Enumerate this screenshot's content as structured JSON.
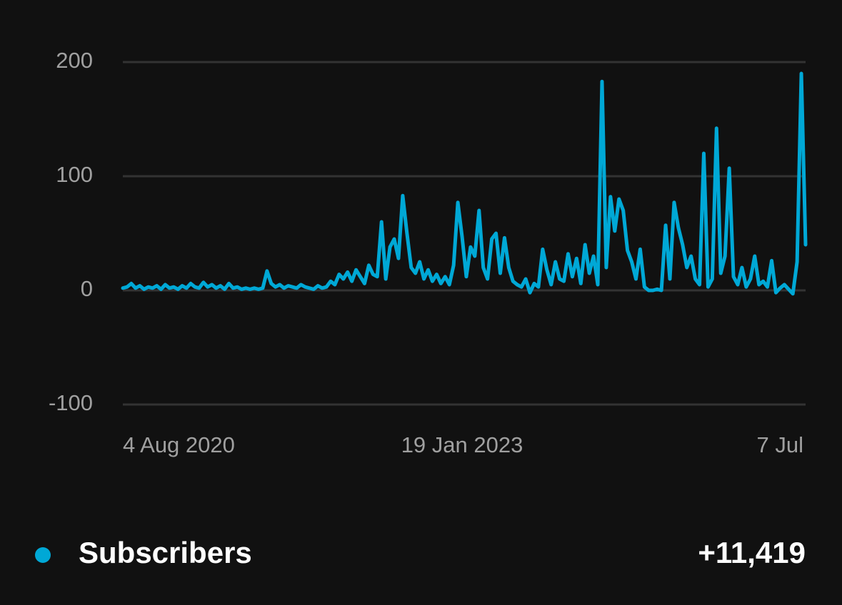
{
  "chart_data": {
    "type": "line",
    "categories": [
      "4 Aug 2020",
      null,
      null,
      null,
      null,
      null,
      null,
      null,
      null,
      null,
      null,
      null,
      null,
      null,
      null,
      null,
      null,
      null,
      null,
      null,
      null,
      null,
      null,
      null,
      null,
      null,
      null,
      null,
      null,
      null,
      null,
      null,
      null,
      null,
      null,
      null,
      null,
      null,
      null,
      null,
      null,
      null,
      null,
      null,
      null,
      null,
      null,
      null,
      null,
      null,
      null,
      null,
      null,
      null,
      null,
      null,
      null,
      null,
      null,
      null,
      null,
      null,
      null,
      null,
      null,
      null,
      null,
      null,
      null,
      null,
      null,
      null,
      null,
      null,
      null,
      null,
      null,
      null,
      null,
      null,
      "19 Jan 2023",
      null,
      null,
      null,
      null,
      null,
      null,
      null,
      null,
      null,
      null,
      null,
      null,
      null,
      null,
      null,
      null,
      null,
      null,
      null,
      null,
      null,
      null,
      null,
      null,
      null,
      null,
      null,
      null,
      null,
      null,
      null,
      null,
      null,
      null,
      null,
      null,
      null,
      null,
      null,
      null,
      null,
      null,
      null,
      null,
      null,
      null,
      null,
      null,
      null,
      null,
      null,
      null,
      null,
      null,
      null,
      null,
      null,
      null,
      null,
      null,
      null,
      null,
      null,
      null,
      null,
      null,
      null,
      null,
      null,
      null,
      null,
      null,
      null,
      null,
      null,
      null,
      null,
      null,
      null,
      null,
      "7 Jul"
    ],
    "series": [
      {
        "name": "Subscribers",
        "color": "#00a8d6",
        "total": "+11,419",
        "values": [
          2,
          3,
          6,
          2,
          4,
          1,
          3,
          2,
          4,
          1,
          5,
          2,
          3,
          1,
          4,
          2,
          6,
          3,
          2,
          7,
          3,
          5,
          2,
          4,
          1,
          6,
          2,
          3,
          1,
          2,
          1,
          2,
          1,
          2,
          17,
          6,
          3,
          5,
          2,
          4,
          3,
          2,
          5,
          3,
          2,
          1,
          4,
          2,
          3,
          8,
          5,
          14,
          10,
          16,
          8,
          18,
          12,
          6,
          22,
          14,
          12,
          60,
          10,
          38,
          45,
          28,
          83,
          50,
          20,
          15,
          25,
          10,
          18,
          8,
          14,
          6,
          12,
          5,
          22,
          77,
          47,
          12,
          38,
          30,
          70,
          20,
          10,
          45,
          50,
          15,
          46,
          20,
          8,
          5,
          3,
          10,
          -2,
          6,
          3,
          36,
          18,
          5,
          25,
          10,
          8,
          32,
          12,
          28,
          6,
          40,
          15,
          30,
          5,
          183,
          20,
          82,
          52,
          80,
          70,
          35,
          25,
          10,
          36,
          3,
          0,
          0,
          1,
          0,
          57,
          10,
          77,
          55,
          40,
          20,
          30,
          10,
          5,
          120,
          3,
          10,
          142,
          15,
          30,
          107,
          12,
          5,
          20,
          3,
          10,
          30,
          5,
          8,
          3,
          26,
          -2,
          2,
          5,
          1,
          -3,
          25,
          190,
          40
        ]
      }
    ],
    "ylim": [
      -100,
      200
    ],
    "yticks": [
      -100,
      0,
      100,
      200
    ],
    "grid": true
  }
}
